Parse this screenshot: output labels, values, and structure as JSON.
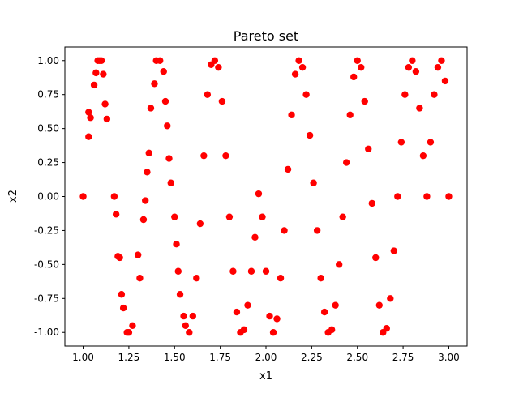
{
  "chart_data": {
    "type": "scatter",
    "title": "Pareto set",
    "xlabel": "x1",
    "ylabel": "x2",
    "xlim": [
      0.9,
      3.1
    ],
    "ylim": [
      -1.1,
      1.1
    ],
    "x_ticks": [
      "1.00",
      "1.25",
      "1.50",
      "1.75",
      "2.00",
      "2.25",
      "2.50",
      "2.75",
      "3.00"
    ],
    "y_ticks": [
      "-1.00",
      "-0.75",
      "-0.50",
      "-0.25",
      "0.00",
      "0.25",
      "0.50",
      "0.75",
      "1.00"
    ],
    "grid": false,
    "marker_color": "#ff0000",
    "series": [
      {
        "x": [
          1.0,
          1.03,
          1.03,
          1.04,
          1.06,
          1.07,
          1.08,
          1.09,
          1.1,
          1.11,
          1.12,
          1.13,
          1.17,
          1.18,
          1.19,
          1.2,
          1.21,
          1.22,
          1.24,
          1.25,
          1.27,
          1.3,
          1.31,
          1.33,
          1.34,
          1.35,
          1.36,
          1.37,
          1.39,
          1.4,
          1.42,
          1.44,
          1.45,
          1.46,
          1.47,
          1.48,
          1.5,
          1.51,
          1.52,
          1.53,
          1.55,
          1.56,
          1.58,
          1.6,
          1.62,
          1.64,
          1.66,
          1.68,
          1.7,
          1.72,
          1.74,
          1.76,
          1.78,
          1.8,
          1.82,
          1.84,
          1.86,
          1.88,
          1.9,
          1.92,
          1.94,
          1.96,
          1.98,
          2.0,
          2.02,
          2.04,
          2.06,
          2.08,
          2.1,
          2.12,
          2.14,
          2.16,
          2.18,
          2.2,
          2.22,
          2.24,
          2.26,
          2.28,
          2.3,
          2.32,
          2.34,
          2.36,
          2.38,
          2.4,
          2.42,
          2.44,
          2.46,
          2.48,
          2.5,
          2.52,
          2.54,
          2.56,
          2.58,
          2.6,
          2.62,
          2.64,
          2.66,
          2.68,
          2.7,
          2.72,
          2.74,
          2.76,
          2.78,
          2.8,
          2.82,
          2.84,
          2.86,
          2.88,
          2.9,
          2.92,
          2.94,
          2.96,
          2.98,
          3.0
        ],
        "y": [
          0.0,
          0.44,
          0.62,
          0.58,
          0.82,
          0.91,
          1.0,
          1.0,
          1.0,
          0.9,
          0.68,
          0.57,
          0.0,
          -0.13,
          -0.44,
          -0.45,
          -0.72,
          -0.82,
          -1.0,
          -1.0,
          -0.95,
          -0.43,
          -0.6,
          -0.17,
          -0.03,
          0.18,
          0.32,
          0.65,
          0.83,
          1.0,
          1.0,
          0.92,
          0.7,
          0.52,
          0.28,
          0.1,
          -0.15,
          -0.35,
          -0.55,
          -0.72,
          -0.88,
          -0.95,
          -1.0,
          -0.88,
          -0.6,
          -0.2,
          0.3,
          0.75,
          0.97,
          1.0,
          0.95,
          0.7,
          0.3,
          -0.15,
          -0.55,
          -0.85,
          -1.0,
          -0.98,
          -0.8,
          -0.55,
          -0.3,
          0.02,
          -0.15,
          -0.55,
          -0.88,
          -1.0,
          -0.9,
          -0.6,
          -0.25,
          0.2,
          0.6,
          0.9,
          1.0,
          0.95,
          0.75,
          0.45,
          0.1,
          -0.25,
          -0.6,
          -0.85,
          -1.0,
          -0.98,
          -0.8,
          -0.5,
          -0.15,
          0.25,
          0.6,
          0.88,
          1.0,
          0.95,
          0.7,
          0.35,
          -0.05,
          -0.45,
          -0.8,
          -1.0,
          -0.97,
          -0.75,
          -0.4,
          0.0,
          0.4,
          0.75,
          0.95,
          1.0,
          0.92,
          0.65,
          0.3,
          0.0,
          0.4,
          0.75,
          0.95,
          1.0,
          0.85,
          0.0
        ]
      }
    ]
  }
}
